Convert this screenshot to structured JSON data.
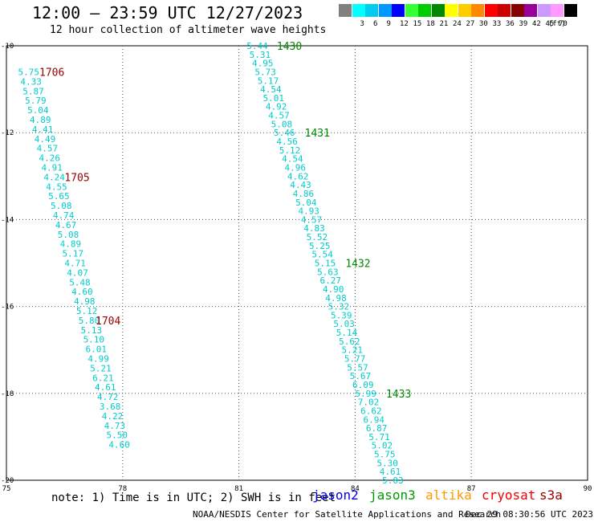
{
  "header": {
    "title": "12:00 — 23:59 UTC 12/27/2023",
    "subtitle": "12 hour collection of altimeter wave heights"
  },
  "legend": {
    "unit": "(ft)",
    "bins": [
      {
        "label": "",
        "color": "#808080"
      },
      {
        "label": "3",
        "color": "#00ffff"
      },
      {
        "label": "6",
        "color": "#00ccee"
      },
      {
        "label": "9",
        "color": "#0099ff"
      },
      {
        "label": "12",
        "color": "#0000ff"
      },
      {
        "label": "15",
        "color": "#33ff33"
      },
      {
        "label": "18",
        "color": "#00cc00"
      },
      {
        "label": "21",
        "color": "#008800"
      },
      {
        "label": "24",
        "color": "#ffff00"
      },
      {
        "label": "27",
        "color": "#ffcc00"
      },
      {
        "label": "30",
        "color": "#ff8800"
      },
      {
        "label": "33",
        "color": "#ff0000"
      },
      {
        "label": "36",
        "color": "#cc0000"
      },
      {
        "label": "39",
        "color": "#880000"
      },
      {
        "label": "42",
        "color": "#990099"
      },
      {
        "label": "45",
        "color": "#cc99ff"
      },
      {
        "label": "70",
        "color": "#ff99ff"
      },
      {
        "label": "",
        "color": "#000000"
      }
    ]
  },
  "footer": {
    "note": "note: 1) Time is in UTC; 2) SWH is in feet",
    "satellites": [
      {
        "name": "jason2",
        "color": "#0000ee"
      },
      {
        "name": "jason3",
        "color": "#009900"
      },
      {
        "name": "altika",
        "color": "#ff9900"
      },
      {
        "name": "cryosat",
        "color": "#ee0000"
      },
      {
        "name": "s3a",
        "color": "#990000"
      }
    ],
    "credit": "NOAA/NESDIS Center for Satellite Applications and Research",
    "timestamp": "Dec 29 08:30:56 UTC 2023"
  },
  "chart_data": {
    "type": "scatter",
    "xlim": [
      75,
      90
    ],
    "ylim": [
      -20,
      -10
    ],
    "xticks": [
      75,
      78,
      81,
      84,
      87,
      90
    ],
    "yticks": [
      -10,
      -12,
      -14,
      -16,
      -18,
      -20
    ],
    "grid": true,
    "value_color": "#00cccc",
    "series": [
      {
        "points": [
          {
            "x": 75.3,
            "y": -10.6,
            "v": "5.75"
          },
          {
            "x": 75.36,
            "y": -10.82,
            "v": "4.33"
          },
          {
            "x": 75.42,
            "y": -11.04,
            "v": "5.87"
          },
          {
            "x": 75.48,
            "y": -11.26,
            "v": "5.79"
          },
          {
            "x": 75.54,
            "y": -11.48,
            "v": "5.04"
          },
          {
            "x": 75.6,
            "y": -11.7,
            "v": "4.89"
          },
          {
            "x": 75.66,
            "y": -11.92,
            "v": "4.41"
          },
          {
            "x": 75.72,
            "y": -12.14,
            "v": "4.49"
          },
          {
            "x": 75.78,
            "y": -12.36,
            "v": "4.57"
          },
          {
            "x": 75.84,
            "y": -12.58,
            "v": "4.26"
          },
          {
            "x": 75.9,
            "y": -12.8,
            "v": "4.91"
          },
          {
            "x": 75.96,
            "y": -13.02,
            "v": "4.24"
          },
          {
            "x": 76.02,
            "y": -13.24,
            "v": "4.55"
          },
          {
            "x": 76.08,
            "y": -13.46,
            "v": "5.65"
          },
          {
            "x": 76.14,
            "y": -13.68,
            "v": "5.08"
          },
          {
            "x": 76.2,
            "y": -13.9,
            "v": "4.74"
          },
          {
            "x": 76.26,
            "y": -14.12,
            "v": "4.67"
          },
          {
            "x": 76.32,
            "y": -14.34,
            "v": "5.08"
          },
          {
            "x": 76.38,
            "y": -14.56,
            "v": "4.89"
          },
          {
            "x": 76.44,
            "y": -14.78,
            "v": "5.17"
          },
          {
            "x": 76.5,
            "y": -15.0,
            "v": "4.71"
          },
          {
            "x": 76.56,
            "y": -15.22,
            "v": "4.07"
          },
          {
            "x": 76.62,
            "y": -15.44,
            "v": "5.48"
          },
          {
            "x": 76.68,
            "y": -15.66,
            "v": "4.60"
          },
          {
            "x": 76.74,
            "y": -15.88,
            "v": "4.98"
          },
          {
            "x": 76.8,
            "y": -16.1,
            "v": "5.12"
          },
          {
            "x": 76.86,
            "y": -16.32,
            "v": "5.80"
          },
          {
            "x": 76.92,
            "y": -16.54,
            "v": "5.13"
          },
          {
            "x": 76.98,
            "y": -16.76,
            "v": "5.10"
          },
          {
            "x": 77.04,
            "y": -16.98,
            "v": "6.01"
          },
          {
            "x": 77.1,
            "y": -17.2,
            "v": "4.99"
          },
          {
            "x": 77.16,
            "y": -17.42,
            "v": "5.21"
          },
          {
            "x": 77.22,
            "y": -17.64,
            "v": "6.21"
          },
          {
            "x": 77.28,
            "y": -17.86,
            "v": "4.61"
          },
          {
            "x": 77.34,
            "y": -18.08,
            "v": "4.72"
          },
          {
            "x": 77.4,
            "y": -18.3,
            "v": "3.68"
          },
          {
            "x": 77.46,
            "y": -18.52,
            "v": "4.22"
          },
          {
            "x": 77.52,
            "y": -18.74,
            "v": "4.73"
          },
          {
            "x": 77.58,
            "y": -18.96,
            "v": "5.50"
          },
          {
            "x": 77.64,
            "y": -19.18,
            "v": "4.60"
          }
        ],
        "time_labels": [
          {
            "x": 75.85,
            "y": -10.6,
            "text": "1706"
          },
          {
            "x": 76.5,
            "y": -13.02,
            "text": "1705"
          },
          {
            "x": 77.3,
            "y": -16.32,
            "text": "1704"
          }
        ],
        "time_color": "#990000"
      },
      {
        "points": [
          {
            "x": 81.2,
            "y": -10.0,
            "v": "5.44"
          },
          {
            "x": 81.27,
            "y": -10.2,
            "v": "5.31"
          },
          {
            "x": 81.34,
            "y": -10.4,
            "v": "4.95"
          },
          {
            "x": 81.41,
            "y": -10.6,
            "v": "5.73"
          },
          {
            "x": 81.48,
            "y": -10.8,
            "v": "5.17"
          },
          {
            "x": 81.55,
            "y": -11.0,
            "v": "4.54"
          },
          {
            "x": 81.62,
            "y": -11.2,
            "v": "5.01"
          },
          {
            "x": 81.69,
            "y": -11.4,
            "v": "4.92"
          },
          {
            "x": 81.76,
            "y": -11.6,
            "v": "4.57"
          },
          {
            "x": 81.83,
            "y": -11.8,
            "v": "5.08"
          },
          {
            "x": 81.9,
            "y": -12.0,
            "v": "5.46"
          },
          {
            "x": 81.97,
            "y": -12.2,
            "v": "4.56"
          },
          {
            "x": 82.04,
            "y": -12.4,
            "v": "5.12"
          },
          {
            "x": 82.11,
            "y": -12.6,
            "v": "4.54"
          },
          {
            "x": 82.18,
            "y": -12.8,
            "v": "4.96"
          },
          {
            "x": 82.25,
            "y": -13.0,
            "v": "4.62"
          },
          {
            "x": 82.32,
            "y": -13.2,
            "v": "4.43"
          },
          {
            "x": 82.39,
            "y": -13.4,
            "v": "4.86"
          },
          {
            "x": 82.46,
            "y": -13.6,
            "v": "5.04"
          },
          {
            "x": 82.53,
            "y": -13.8,
            "v": "4.93"
          },
          {
            "x": 82.6,
            "y": -14.0,
            "v": "4.57"
          },
          {
            "x": 82.67,
            "y": -14.2,
            "v": "4.83"
          },
          {
            "x": 82.74,
            "y": -14.4,
            "v": "5.52"
          },
          {
            "x": 82.81,
            "y": -14.6,
            "v": "5.25"
          },
          {
            "x": 82.88,
            "y": -14.8,
            "v": "5.54"
          },
          {
            "x": 82.95,
            "y": -15.0,
            "v": "5.15"
          },
          {
            "x": 83.02,
            "y": -15.2,
            "v": "5.63"
          },
          {
            "x": 83.09,
            "y": -15.4,
            "v": "6.27"
          },
          {
            "x": 83.16,
            "y": -15.6,
            "v": "4.90"
          },
          {
            "x": 83.23,
            "y": -15.8,
            "v": "4.98"
          },
          {
            "x": 83.3,
            "y": -16.0,
            "v": "5.32"
          },
          {
            "x": 83.37,
            "y": -16.2,
            "v": "5.39"
          },
          {
            "x": 83.44,
            "y": -16.4,
            "v": "5.03"
          },
          {
            "x": 83.51,
            "y": -16.6,
            "v": "5.14"
          },
          {
            "x": 83.58,
            "y": -16.8,
            "v": "5.62"
          },
          {
            "x": 83.65,
            "y": -17.0,
            "v": "5.21"
          },
          {
            "x": 83.72,
            "y": -17.2,
            "v": "5.77"
          },
          {
            "x": 83.79,
            "y": -17.4,
            "v": "5.57"
          },
          {
            "x": 83.86,
            "y": -17.6,
            "v": "5.67"
          },
          {
            "x": 83.93,
            "y": -17.8,
            "v": "6.09"
          },
          {
            "x": 84.0,
            "y": -18.0,
            "v": "5.99"
          },
          {
            "x": 84.07,
            "y": -18.2,
            "v": "7.02"
          },
          {
            "x": 84.14,
            "y": -18.4,
            "v": "6.62"
          },
          {
            "x": 84.21,
            "y": -18.6,
            "v": "6.94"
          },
          {
            "x": 84.28,
            "y": -18.8,
            "v": "6.87"
          },
          {
            "x": 84.35,
            "y": -19.0,
            "v": "5.71"
          },
          {
            "x": 84.42,
            "y": -19.2,
            "v": "5.02"
          },
          {
            "x": 84.49,
            "y": -19.4,
            "v": "5.75"
          },
          {
            "x": 84.56,
            "y": -19.6,
            "v": "5.30"
          },
          {
            "x": 84.63,
            "y": -19.8,
            "v": "4.61"
          },
          {
            "x": 84.7,
            "y": -20.0,
            "v": "5.03"
          }
        ],
        "time_labels": [
          {
            "x": 81.98,
            "y": -10.0,
            "text": "1430"
          },
          {
            "x": 82.7,
            "y": -12.0,
            "text": "1431"
          },
          {
            "x": 83.75,
            "y": -15.0,
            "text": "1432"
          },
          {
            "x": 84.8,
            "y": -18.0,
            "text": "1433"
          }
        ],
        "time_color": "#008800"
      }
    ]
  }
}
